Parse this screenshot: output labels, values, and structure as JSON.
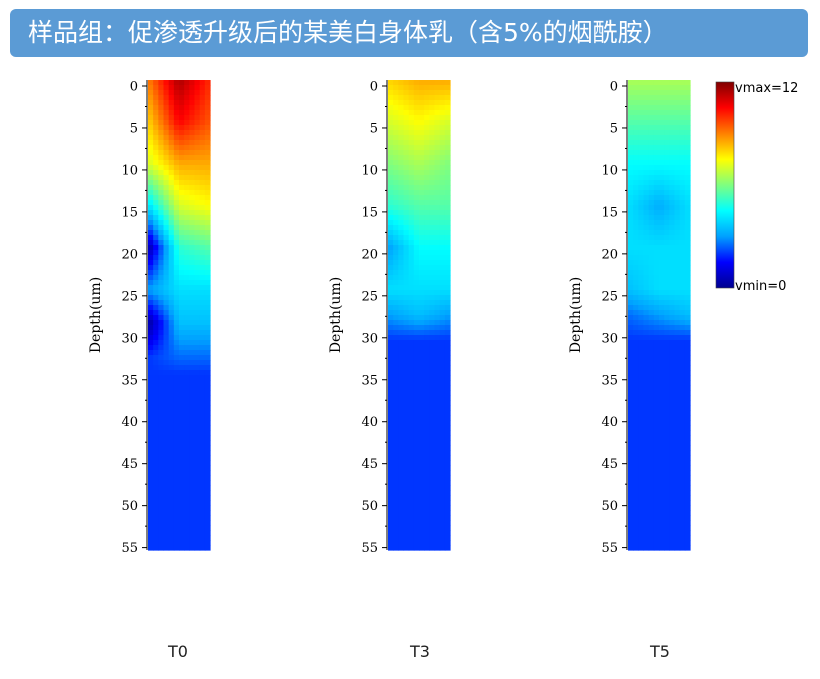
{
  "title": "样品组：促渗透升级后的某美白身体乳（含5%的烟酰胺）",
  "chart_data": [
    {
      "type": "heatmap",
      "panel": "T0",
      "ylabel": "Depth(um)",
      "yticks": [
        0,
        5,
        10,
        15,
        20,
        25,
        30,
        35,
        40,
        45,
        50,
        55
      ],
      "ylim": [
        0,
        56
      ],
      "vmin": 0,
      "vmax": 12,
      "depth_profile": [
        {
          "depth": 0,
          "left": 9,
          "center": 11.5,
          "right": 10
        },
        {
          "depth": 5,
          "left": 8,
          "center": 10.5,
          "right": 9.5
        },
        {
          "depth": 10,
          "left": 7,
          "center": 8.5,
          "right": 8.5
        },
        {
          "depth": 15,
          "left": 4,
          "center": 7,
          "right": 7.5
        },
        {
          "depth": 20,
          "left": 0.3,
          "center": 5,
          "right": 5.5
        },
        {
          "depth": 25,
          "left": 3,
          "center": 4,
          "right": 4
        },
        {
          "depth": 29,
          "left": 0.2,
          "center": 3.5,
          "right": 3.5
        },
        {
          "depth": 33,
          "left": 2,
          "center": 2.5,
          "right": 2.5
        },
        {
          "depth": 35,
          "left": 2,
          "center": 2,
          "right": 2
        },
        {
          "depth": 56,
          "left": 2,
          "center": 2,
          "right": 2
        }
      ]
    },
    {
      "type": "heatmap",
      "panel": "T3",
      "ylabel": "Depth(um)",
      "yticks": [
        0,
        5,
        10,
        15,
        20,
        25,
        30,
        35,
        40,
        45,
        50,
        55
      ],
      "ylim": [
        0,
        56
      ],
      "vmin": 0,
      "vmax": 12,
      "depth_profile": [
        {
          "depth": 0,
          "left": 8,
          "center": 8.5,
          "right": 8.5
        },
        {
          "depth": 5,
          "left": 7,
          "center": 7.5,
          "right": 7
        },
        {
          "depth": 10,
          "left": 6,
          "center": 6.5,
          "right": 6
        },
        {
          "depth": 15,
          "left": 5,
          "center": 5.5,
          "right": 5.5
        },
        {
          "depth": 20,
          "left": 3,
          "center": 4.5,
          "right": 4.5
        },
        {
          "depth": 25,
          "left": 4,
          "center": 4,
          "right": 4
        },
        {
          "depth": 28,
          "left": 3,
          "center": 3.5,
          "right": 3
        },
        {
          "depth": 31,
          "left": 2,
          "center": 2,
          "right": 2
        },
        {
          "depth": 56,
          "left": 2,
          "center": 2,
          "right": 2
        }
      ]
    },
    {
      "type": "heatmap",
      "panel": "T5",
      "ylabel": "Depth(um)",
      "yticks": [
        0,
        5,
        10,
        15,
        20,
        25,
        30,
        35,
        40,
        45,
        50,
        55
      ],
      "ylim": [
        0,
        56
      ],
      "vmin": 0,
      "vmax": 12,
      "depth_profile": [
        {
          "depth": 0,
          "left": 6.5,
          "center": 6.5,
          "right": 6.5
        },
        {
          "depth": 5,
          "left": 5.5,
          "center": 5.5,
          "right": 5.5
        },
        {
          "depth": 10,
          "left": 4.5,
          "center": 4.5,
          "right": 4.5
        },
        {
          "depth": 15,
          "left": 4,
          "center": 3.2,
          "right": 4
        },
        {
          "depth": 20,
          "left": 4,
          "center": 4,
          "right": 4
        },
        {
          "depth": 25,
          "left": 3.5,
          "center": 4,
          "right": 4
        },
        {
          "depth": 28,
          "left": 2.5,
          "center": 3,
          "right": 3.5
        },
        {
          "depth": 31,
          "left": 2,
          "center": 2,
          "right": 2
        },
        {
          "depth": 56,
          "left": 2,
          "center": 2,
          "right": 2
        }
      ]
    }
  ],
  "colorbar": {
    "max_label": "vmax=12",
    "min_label": "vmin=0",
    "stops": [
      "#00008f",
      "#0000ff",
      "#00a0ff",
      "#00ffff",
      "#7fff7f",
      "#ffff00",
      "#ff8000",
      "#ff0000",
      "#800000"
    ]
  }
}
